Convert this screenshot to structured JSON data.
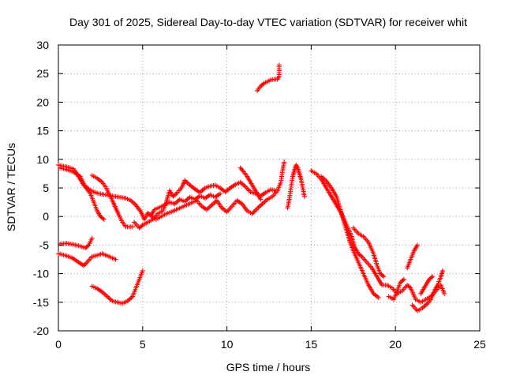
{
  "chart_data": {
    "type": "scatter",
    "title": "Day 301 of 2025, Sidereal Day-to-day VTEC variation (SDTVAR) for receiver whit",
    "xlabel": "GPS time / hours",
    "ylabel": "SDTVAR / TECUs",
    "xlim": [
      0,
      25
    ],
    "ylim": [
      -20,
      30
    ],
    "xticks": [
      0,
      5,
      10,
      15,
      20,
      25
    ],
    "yticks": [
      -20,
      -15,
      -10,
      -5,
      0,
      5,
      10,
      15,
      20,
      25,
      30
    ],
    "grid": true,
    "marker": "+",
    "series": [
      {
        "name": "SDTVAR",
        "color": "#ff0000",
        "tracks": [
          [
            [
              0.0,
              9.0
            ],
            [
              0.3,
              8.8
            ],
            [
              0.6,
              8.6
            ],
            [
              0.9,
              8.3
            ],
            [
              1.1,
              7.5
            ],
            [
              1.3,
              6.5
            ],
            [
              1.5,
              5.5
            ],
            [
              1.8,
              4.8
            ],
            [
              2.1,
              4.3
            ],
            [
              2.4,
              4.0
            ],
            [
              2.8,
              3.8
            ],
            [
              3.2,
              3.6
            ],
            [
              3.6,
              3.4
            ],
            [
              4.0,
              3.2
            ],
            [
              4.3,
              2.8
            ],
            [
              4.6,
              2.0
            ],
            [
              4.9,
              0.8
            ],
            [
              5.1,
              -0.5
            ],
            [
              5.3,
              0.6
            ],
            [
              5.5,
              0.2
            ],
            [
              5.7,
              1.2
            ],
            [
              6.0,
              1.6
            ],
            [
              6.3,
              2.0
            ],
            [
              6.6,
              2.5
            ],
            [
              6.9,
              2.2
            ],
            [
              7.2,
              3.0
            ],
            [
              7.5,
              2.6
            ],
            [
              7.8,
              3.4
            ],
            [
              8.1,
              3.0
            ],
            [
              8.4,
              3.6
            ],
            [
              8.7,
              3.2
            ],
            [
              9.0,
              3.8
            ],
            [
              9.3,
              3.4
            ],
            [
              9.6,
              4.0
            ]
          ],
          [
            [
              0.1,
              8.5
            ],
            [
              0.5,
              8.2
            ],
            [
              0.9,
              7.8
            ],
            [
              1.3,
              7.0
            ],
            [
              1.6,
              5.2
            ],
            [
              1.9,
              4.0
            ],
            [
              2.1,
              2.5
            ],
            [
              2.3,
              1.0
            ],
            [
              2.5,
              0.0
            ],
            [
              2.7,
              -0.5
            ]
          ],
          [
            [
              2.0,
              7.2
            ],
            [
              2.3,
              6.7
            ],
            [
              2.6,
              6.0
            ],
            [
              2.8,
              5.2
            ],
            [
              3.0,
              4.0
            ],
            [
              3.2,
              2.8
            ],
            [
              3.4,
              1.5
            ],
            [
              3.6,
              0.2
            ],
            [
              3.8,
              -1.0
            ],
            [
              4.0,
              -1.8
            ],
            [
              4.4,
              -1.8
            ]
          ],
          [
            [
              0.1,
              -4.8
            ],
            [
              0.5,
              -4.7
            ],
            [
              0.9,
              -4.9
            ],
            [
              1.3,
              -5.2
            ],
            [
              1.6,
              -5.5
            ],
            [
              1.8,
              -5.0
            ],
            [
              2.0,
              -3.8
            ]
          ],
          [
            [
              0.0,
              -6.5
            ],
            [
              0.4,
              -6.8
            ],
            [
              0.8,
              -7.2
            ],
            [
              1.2,
              -8.0
            ],
            [
              1.5,
              -8.6
            ],
            [
              1.7,
              -8.0
            ],
            [
              2.0,
              -7.0
            ],
            [
              2.3,
              -6.8
            ],
            [
              2.6,
              -6.5
            ],
            [
              3.0,
              -7.0
            ],
            [
              3.4,
              -7.5
            ]
          ],
          [
            [
              2.0,
              -12.2
            ],
            [
              2.3,
              -12.6
            ],
            [
              2.6,
              -13.2
            ],
            [
              2.9,
              -14.0
            ],
            [
              3.2,
              -14.8
            ],
            [
              3.5,
              -15.0
            ],
            [
              3.8,
              -15.2
            ],
            [
              4.1,
              -14.8
            ],
            [
              4.4,
              -14.0
            ],
            [
              4.6,
              -12.5
            ],
            [
              4.8,
              -11.0
            ],
            [
              5.0,
              -9.5
            ]
          ],
          [
            [
              4.5,
              -1.0
            ],
            [
              4.8,
              -2.0
            ],
            [
              5.0,
              -1.5
            ],
            [
              5.3,
              -1.0
            ],
            [
              5.6,
              -0.5
            ],
            [
              5.9,
              0.5
            ],
            [
              6.2,
              1.0
            ],
            [
              6.4,
              2.5
            ],
            [
              6.6,
              4.5
            ],
            [
              6.8,
              3.5
            ],
            [
              7.0,
              4.0
            ],
            [
              7.3,
              5.0
            ],
            [
              7.5,
              6.3
            ],
            [
              7.8,
              5.5
            ],
            [
              8.1,
              4.8
            ],
            [
              8.4,
              4.2
            ],
            [
              8.7,
              5.0
            ],
            [
              9.0,
              5.3
            ],
            [
              9.3,
              5.5
            ],
            [
              9.6,
              5.0
            ],
            [
              9.9,
              4.3
            ],
            [
              10.2,
              5.0
            ],
            [
              10.5,
              5.6
            ],
            [
              10.8,
              6.0
            ],
            [
              11.1,
              5.2
            ],
            [
              11.4,
              4.3
            ],
            [
              11.7,
              4.0
            ],
            [
              12.0,
              3.6
            ],
            [
              12.3,
              4.2
            ],
            [
              12.6,
              4.7
            ],
            [
              12.9,
              4.5
            ]
          ],
          [
            [
              5.5,
              0.0
            ],
            [
              5.8,
              -0.5
            ],
            [
              6.1,
              0.0
            ],
            [
              6.4,
              0.5
            ],
            [
              6.7,
              0.8
            ],
            [
              7.0,
              1.2
            ],
            [
              7.3,
              1.6
            ],
            [
              7.6,
              2.0
            ],
            [
              7.9,
              2.4
            ],
            [
              8.2,
              2.8
            ],
            [
              8.5,
              1.8
            ],
            [
              8.8,
              1.2
            ],
            [
              9.1,
              2.0
            ],
            [
              9.4,
              2.8
            ],
            [
              9.7,
              1.5
            ],
            [
              10.0,
              0.8
            ],
            [
              10.3,
              1.8
            ],
            [
              10.6,
              2.8
            ],
            [
              10.9,
              2.2
            ],
            [
              11.2,
              1.0
            ],
            [
              11.5,
              0.5
            ],
            [
              11.8,
              1.4
            ],
            [
              12.1,
              2.2
            ],
            [
              12.4,
              3.0
            ],
            [
              12.7,
              3.5
            ],
            [
              13.0,
              4.5
            ],
            [
              13.2,
              6.0
            ],
            [
              13.3,
              8.0
            ],
            [
              13.4,
              9.5
            ]
          ],
          [
            [
              10.8,
              8.5
            ],
            [
              11.0,
              7.8
            ],
            [
              11.2,
              7.0
            ],
            [
              11.4,
              6.0
            ],
            [
              11.6,
              5.0
            ],
            [
              11.8,
              4.0
            ],
            [
              12.0,
              3.0
            ]
          ],
          [
            [
              11.8,
              22.0
            ],
            [
              12.0,
              22.8
            ],
            [
              12.2,
              23.3
            ],
            [
              12.4,
              23.6
            ],
            [
              12.6,
              23.9
            ],
            [
              12.8,
              24.0
            ],
            [
              13.0,
              24.0
            ],
            [
              13.1,
              24.5
            ],
            [
              13.1,
              26.5
            ]
          ],
          [
            [
              13.6,
              1.5
            ],
            [
              13.7,
              3.0
            ],
            [
              13.8,
              5.0
            ],
            [
              13.9,
              7.0
            ],
            [
              14.0,
              8.0
            ],
            [
              14.1,
              9.0
            ],
            [
              14.2,
              8.5
            ],
            [
              14.3,
              7.5
            ],
            [
              14.4,
              6.5
            ],
            [
              14.5,
              5.0
            ],
            [
              14.6,
              3.5
            ]
          ],
          [
            [
              15.0,
              8.0
            ],
            [
              15.3,
              7.5
            ],
            [
              15.6,
              6.5
            ],
            [
              15.9,
              5.0
            ],
            [
              16.2,
              3.5
            ],
            [
              16.5,
              2.0
            ],
            [
              16.8,
              0.5
            ],
            [
              17.1,
              -1.5
            ],
            [
              17.4,
              -3.5
            ],
            [
              17.6,
              -5.5
            ],
            [
              17.8,
              -6.5
            ],
            [
              18.0,
              -7.0
            ],
            [
              18.3,
              -8.0
            ],
            [
              18.6,
              -9.0
            ],
            [
              18.9,
              -10.5
            ],
            [
              19.2,
              -12.0
            ],
            [
              19.5,
              -12.0
            ],
            [
              19.8,
              -12.5
            ],
            [
              20.1,
              -13.5
            ],
            [
              20.4,
              -13.0
            ],
            [
              20.7,
              -12.0
            ],
            [
              20.9,
              -12.5
            ],
            [
              21.2,
              -14.5
            ],
            [
              21.5,
              -15.0
            ],
            [
              21.8,
              -14.5
            ],
            [
              22.1,
              -14.0
            ],
            [
              22.4,
              -13.0
            ],
            [
              22.7,
              -12.0
            ],
            [
              22.9,
              -13.5
            ]
          ],
          [
            [
              15.6,
              7.0
            ],
            [
              15.9,
              6.2
            ],
            [
              16.2,
              5.0
            ],
            [
              16.5,
              3.5
            ],
            [
              16.7,
              1.5
            ],
            [
              16.9,
              -0.5
            ],
            [
              17.1,
              -2.5
            ],
            [
              17.3,
              -4.5
            ],
            [
              17.5,
              -6.0
            ],
            [
              17.8,
              -8.0
            ],
            [
              18.1,
              -10.0
            ],
            [
              18.4,
              -12.0
            ],
            [
              18.7,
              -13.5
            ],
            [
              19.0,
              -14.2
            ]
          ],
          [
            [
              17.5,
              -2.0
            ],
            [
              17.8,
              -3.0
            ],
            [
              18.1,
              -3.5
            ],
            [
              18.4,
              -4.5
            ],
            [
              18.7,
              -6.5
            ],
            [
              18.9,
              -8.5
            ],
            [
              19.1,
              -10.0
            ],
            [
              19.3,
              -10.5
            ]
          ],
          [
            [
              19.6,
              -14.0
            ],
            [
              19.9,
              -14.5
            ],
            [
              20.1,
              -13.0
            ],
            [
              20.3,
              -11.5
            ],
            [
              20.5,
              -11.0
            ]
          ],
          [
            [
              20.7,
              -9.0
            ],
            [
              20.9,
              -7.5
            ],
            [
              21.1,
              -6.0
            ],
            [
              21.3,
              -5.0
            ]
          ],
          [
            [
              21.0,
              -15.5
            ],
            [
              21.3,
              -16.5
            ],
            [
              21.6,
              -16.0
            ],
            [
              21.9,
              -15.2
            ],
            [
              22.1,
              -14.5
            ],
            [
              22.3,
              -13.0
            ],
            [
              22.5,
              -12.0
            ],
            [
              22.7,
              -10.5
            ],
            [
              22.8,
              -9.5
            ]
          ],
          [
            [
              21.5,
              -13.5
            ],
            [
              21.8,
              -12.0
            ],
            [
              22.0,
              -11.0
            ],
            [
              22.2,
              -10.5
            ]
          ]
        ]
      }
    ]
  }
}
